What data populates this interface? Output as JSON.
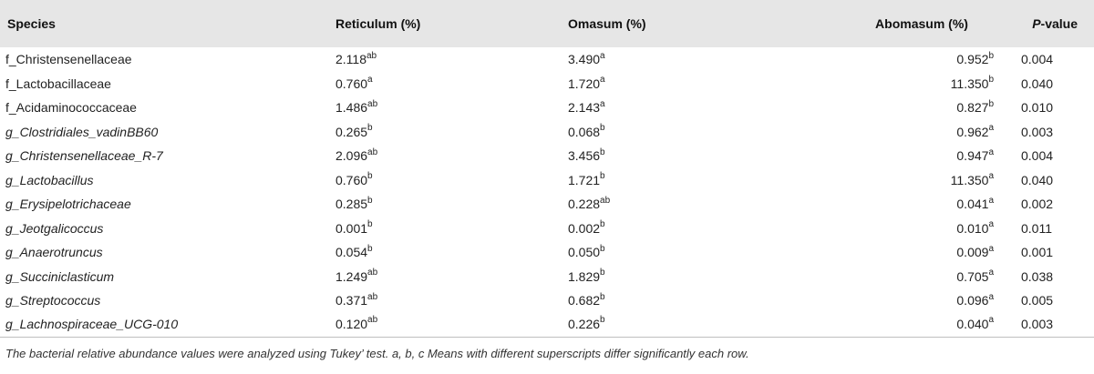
{
  "headers": {
    "species": "Species",
    "reticulum": "Reticulum (%)",
    "omasum": "Omasum (%)",
    "abomasum": "Abomasum (%)",
    "p_italic": "P",
    "p_rest": "-value"
  },
  "rows": [
    {
      "species": "f_Christensenellaceae",
      "italic": false,
      "ret": "2.118",
      "ret_sup": "ab",
      "oma": "3.490",
      "oma_sup": "a",
      "abo": "0.952",
      "abo_sup": "b",
      "p": "0.004"
    },
    {
      "species": "f_Lactobacillaceae",
      "italic": false,
      "ret": "0.760",
      "ret_sup": "a",
      "oma": "1.720",
      "oma_sup": "a",
      "abo": "11.350",
      "abo_sup": "b",
      "p": "0.040"
    },
    {
      "species": "f_Acidaminococcaceae",
      "italic": false,
      "ret": "1.486",
      "ret_sup": "ab",
      "oma": "2.143",
      "oma_sup": "a",
      "abo": "0.827",
      "abo_sup": "b",
      "p": "0.010"
    },
    {
      "species": "g_Clostridiales_vadinBB60",
      "italic": true,
      "ret": "0.265",
      "ret_sup": "b",
      "oma": "0.068",
      "oma_sup": "b",
      "abo": "0.962",
      "abo_sup": "a",
      "p": "0.003"
    },
    {
      "species": "g_Christensenellaceae_R-7",
      "italic": true,
      "ret": "2.096",
      "ret_sup": "ab",
      "oma": "3.456",
      "oma_sup": "b",
      "abo": "0.947",
      "abo_sup": "a",
      "p": "0.004"
    },
    {
      "species": "g_Lactobacillus",
      "italic": true,
      "ret": "0.760",
      "ret_sup": "b",
      "oma": "1.721",
      "oma_sup": "b",
      "abo": "11.350",
      "abo_sup": "a",
      "p": "0.040"
    },
    {
      "species": "g_Erysipelotrichaceae",
      "italic": true,
      "ret": "0.285",
      "ret_sup": "b",
      "oma": "0.228",
      "oma_sup": "ab",
      "abo": "0.041",
      "abo_sup": "a",
      "p": "0.002"
    },
    {
      "species": "g_Jeotgalicoccus",
      "italic": true,
      "ret": "0.001",
      "ret_sup": "b",
      "oma": "0.002",
      "oma_sup": "b",
      "abo": "0.010",
      "abo_sup": "a",
      "p": "0.011"
    },
    {
      "species": "g_Anaerotruncus",
      "italic": true,
      "ret": "0.054",
      "ret_sup": "b",
      "oma": "0.050",
      "oma_sup": "b",
      "abo": "0.009",
      "abo_sup": "a",
      "p": "0.001"
    },
    {
      "species": "g_Succiniclasticum",
      "italic": true,
      "ret": "1.249",
      "ret_sup": "ab",
      "oma": "1.829",
      "oma_sup": "b",
      "abo": "0.705",
      "abo_sup": "a",
      "p": "0.038"
    },
    {
      "species": "g_Streptococcus",
      "italic": true,
      "ret": "0.371",
      "ret_sup": "ab",
      "oma": "0.682",
      "oma_sup": "b",
      "abo": "0.096",
      "abo_sup": "a",
      "p": "0.005"
    },
    {
      "species": "g_Lachnospiraceae_UCG-010",
      "italic": true,
      "ret": "0.120",
      "ret_sup": "ab",
      "oma": "0.226",
      "oma_sup": "b",
      "abo": "0.040",
      "abo_sup": "a",
      "p": "0.003"
    }
  ],
  "footnote": "The bacterial relative abundance values were analyzed using Tukey’ test. a, b, c Means with different superscripts differ significantly each row."
}
